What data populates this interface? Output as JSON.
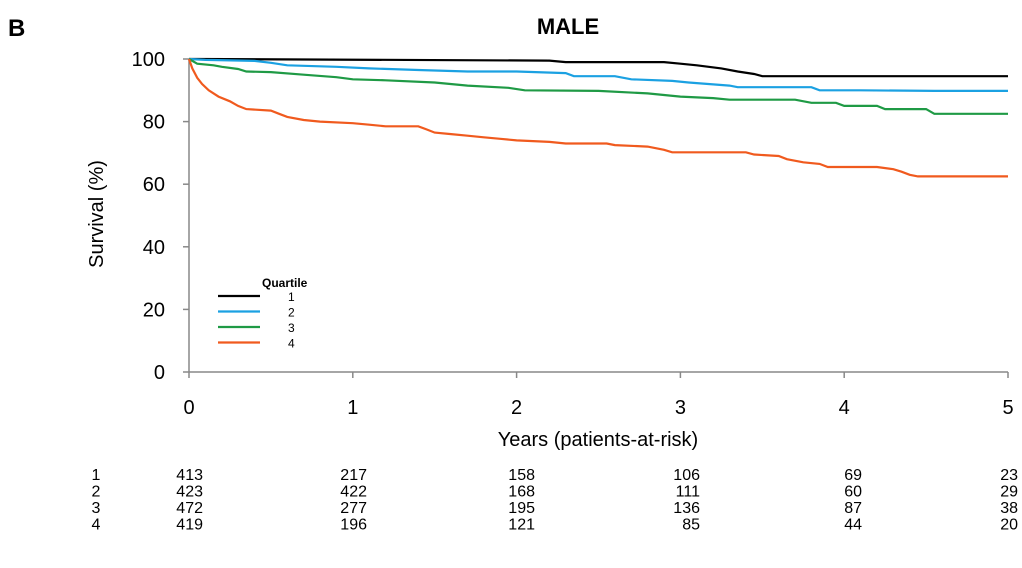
{
  "panel_label": "B",
  "chart_data": {
    "type": "line",
    "title": "MALE",
    "xlabel": "Years (patients-at-risk)",
    "ylabel": "Survival (%)",
    "xlim": [
      0,
      5
    ],
    "ylim": [
      0,
      100
    ],
    "xticks": [
      "0",
      "1",
      "2",
      "3",
      "4",
      "5"
    ],
    "yticks": [
      "0",
      "20",
      "40",
      "60",
      "80",
      "100"
    ],
    "grid": false,
    "legend": {
      "title": "Quartile",
      "position": "lower-left",
      "entries": [
        "1",
        "2",
        "3",
        "4"
      ]
    },
    "series": [
      {
        "name": "1",
        "color": "#000000",
        "points": [
          [
            0,
            100
          ],
          [
            0.05,
            100
          ],
          [
            2.2,
            99.5
          ],
          [
            2.3,
            99
          ],
          [
            2.9,
            99
          ],
          [
            3,
            98.5
          ],
          [
            3.1,
            98
          ],
          [
            3.25,
            97
          ],
          [
            3.35,
            96
          ],
          [
            3.45,
            95.2
          ],
          [
            3.5,
            94.5
          ],
          [
            5,
            94.5
          ]
        ]
      },
      {
        "name": "2",
        "color": "#1ba1e2",
        "points": [
          [
            0,
            100
          ],
          [
            0.1,
            99.7
          ],
          [
            0.4,
            99.4
          ],
          [
            0.5,
            98.8
          ],
          [
            0.6,
            98
          ],
          [
            0.9,
            97.5
          ],
          [
            1.1,
            97
          ],
          [
            1.4,
            96.5
          ],
          [
            1.7,
            96
          ],
          [
            2,
            96
          ],
          [
            2.3,
            95.5
          ],
          [
            2.35,
            94.5
          ],
          [
            2.6,
            94.5
          ],
          [
            2.7,
            93.5
          ],
          [
            2.95,
            93
          ],
          [
            3.05,
            92.5
          ],
          [
            3.3,
            91.5
          ],
          [
            3.35,
            91
          ],
          [
            3.8,
            91
          ],
          [
            3.85,
            90
          ],
          [
            4.1,
            90
          ],
          [
            4.55,
            89.8
          ],
          [
            5,
            89.8
          ]
        ]
      },
      {
        "name": "3",
        "color": "#1f9a45",
        "points": [
          [
            0,
            100
          ],
          [
            0.05,
            98.5
          ],
          [
            0.15,
            98
          ],
          [
            0.2,
            97.5
          ],
          [
            0.3,
            96.8
          ],
          [
            0.35,
            96
          ],
          [
            0.5,
            95.8
          ],
          [
            0.7,
            95
          ],
          [
            0.9,
            94.2
          ],
          [
            1,
            93.5
          ],
          [
            1.2,
            93.2
          ],
          [
            1.5,
            92.5
          ],
          [
            1.7,
            91.5
          ],
          [
            1.95,
            90.8
          ],
          [
            2.05,
            90
          ],
          [
            2.5,
            89.8
          ],
          [
            2.8,
            89
          ],
          [
            2.9,
            88.5
          ],
          [
            3,
            88
          ],
          [
            3.2,
            87.5
          ],
          [
            3.3,
            87
          ],
          [
            3.7,
            87
          ],
          [
            3.8,
            86
          ],
          [
            3.95,
            86
          ],
          [
            4,
            85
          ],
          [
            4.2,
            85
          ],
          [
            4.25,
            84
          ],
          [
            4.5,
            84
          ],
          [
            4.55,
            82.5
          ],
          [
            5,
            82.5
          ]
        ]
      },
      {
        "name": "4",
        "color": "#f05a1e",
        "points": [
          [
            0,
            100
          ],
          [
            0.02,
            97
          ],
          [
            0.05,
            94
          ],
          [
            0.08,
            92
          ],
          [
            0.12,
            90
          ],
          [
            0.18,
            88
          ],
          [
            0.25,
            86.5
          ],
          [
            0.3,
            85
          ],
          [
            0.35,
            84
          ],
          [
            0.5,
            83.5
          ],
          [
            0.55,
            82.5
          ],
          [
            0.6,
            81.5
          ],
          [
            0.7,
            80.5
          ],
          [
            0.8,
            80
          ],
          [
            1,
            79.5
          ],
          [
            1.1,
            79
          ],
          [
            1.2,
            78.5
          ],
          [
            1.4,
            78.5
          ],
          [
            1.45,
            77.5
          ],
          [
            1.5,
            76.5
          ],
          [
            1.6,
            76
          ],
          [
            1.7,
            75.5
          ],
          [
            1.8,
            75
          ],
          [
            1.9,
            74.5
          ],
          [
            2,
            74
          ],
          [
            2.2,
            73.5
          ],
          [
            2.3,
            73
          ],
          [
            2.55,
            73
          ],
          [
            2.6,
            72.5
          ],
          [
            2.8,
            72
          ],
          [
            2.9,
            71
          ],
          [
            2.95,
            70.2
          ],
          [
            3.4,
            70.2
          ],
          [
            3.45,
            69.5
          ],
          [
            3.6,
            69
          ],
          [
            3.65,
            68
          ],
          [
            3.75,
            67
          ],
          [
            3.85,
            66.5
          ],
          [
            3.9,
            65.5
          ],
          [
            4.2,
            65.5
          ],
          [
            4.3,
            64.8
          ],
          [
            4.35,
            64
          ],
          [
            4.4,
            63
          ],
          [
            4.45,
            62.5
          ],
          [
            5,
            62.5
          ]
        ]
      }
    ],
    "risk_table": {
      "times": [
        0,
        1,
        2,
        3,
        4,
        5
      ],
      "rows": [
        {
          "label": "1",
          "values": [
            "413",
            "217",
            "158",
            "106",
            "69",
            "23"
          ]
        },
        {
          "label": "2",
          "values": [
            "423",
            "422",
            "168",
            "111",
            "60",
            "29"
          ]
        },
        {
          "label": "3",
          "values": [
            "472",
            "277",
            "195",
            "136",
            "87",
            "38"
          ]
        },
        {
          "label": "4",
          "values": [
            "419",
            "196",
            "121",
            "85",
            "44",
            "20"
          ]
        }
      ]
    }
  }
}
